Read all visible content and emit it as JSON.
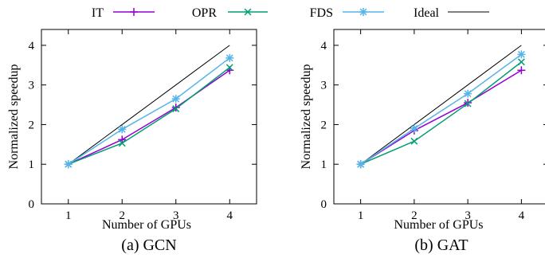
{
  "figure": {
    "legend_placement": "top",
    "colors": {
      "IT": "#9400d3",
      "OPR": "#009e73",
      "FDS": "#56b4e9",
      "Ideal": "#000000",
      "axis": "#000000"
    },
    "markers": {
      "IT": "plus",
      "OPR": "cross",
      "FDS": "asterisk",
      "Ideal": "none"
    }
  },
  "chart_data": [
    {
      "type": "line",
      "caption": "(a) GCN",
      "xlabel": "Number of GPUs",
      "ylabel": "Normalized speedup",
      "x": [
        1,
        2,
        3,
        4
      ],
      "xticks": [
        1,
        2,
        3,
        4
      ],
      "yticks": [
        0,
        1,
        2,
        3,
        4
      ],
      "xlim": [
        0.5,
        4.5
      ],
      "ylim": [
        0,
        4.4
      ],
      "grid": false,
      "series": [
        {
          "name": "IT",
          "values": [
            1.0,
            1.62,
            2.43,
            3.37
          ]
        },
        {
          "name": "OPR",
          "values": [
            1.0,
            1.53,
            2.4,
            3.44
          ]
        },
        {
          "name": "FDS",
          "values": [
            1.0,
            1.88,
            2.65,
            3.68
          ]
        },
        {
          "name": "Ideal",
          "values": [
            1.0,
            2.0,
            3.0,
            4.0
          ]
        }
      ]
    },
    {
      "type": "line",
      "caption": "(b) GAT",
      "xlabel": "Number of GPUs",
      "ylabel": "Normalized speedup",
      "x": [
        1,
        2,
        3,
        4
      ],
      "xticks": [
        1,
        2,
        3,
        4
      ],
      "yticks": [
        0,
        1,
        2,
        3,
        4
      ],
      "xlim": [
        0.5,
        4.5
      ],
      "ylim": [
        0,
        4.4
      ],
      "grid": false,
      "series": [
        {
          "name": "IT",
          "values": [
            1.0,
            1.85,
            2.55,
            3.37
          ]
        },
        {
          "name": "OPR",
          "values": [
            1.0,
            1.58,
            2.53,
            3.58
          ]
        },
        {
          "name": "FDS",
          "values": [
            1.0,
            1.9,
            2.78,
            3.77
          ]
        },
        {
          "name": "Ideal",
          "values": [
            1.0,
            2.0,
            3.0,
            4.0
          ]
        }
      ]
    }
  ]
}
